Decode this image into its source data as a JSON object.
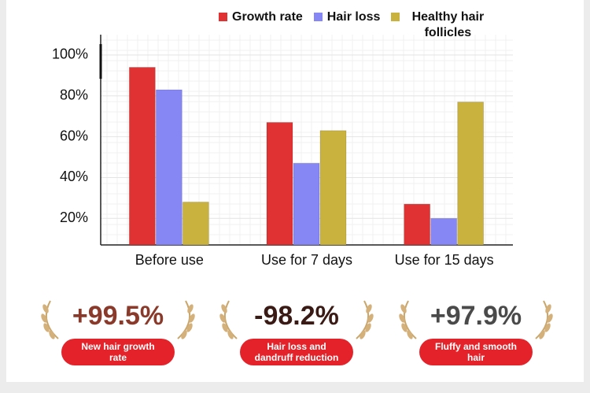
{
  "chart_data": {
    "type": "bar",
    "categories": [
      "Before use",
      "Use for 7 days",
      "Use for 15 days"
    ],
    "series": [
      {
        "name": "Growth rate",
        "color": "#e03232",
        "values": [
          94,
          67,
          27
        ]
      },
      {
        "name": "Hair loss",
        "color": "#8686f4",
        "values": [
          83,
          47,
          20
        ]
      },
      {
        "name": "Healthy hair follicles",
        "color": "#c9b23e",
        "values": [
          28,
          63,
          77
        ]
      }
    ],
    "ylim": [
      7,
      110
    ],
    "yticks": [
      {
        "value": 20,
        "label": "20%"
      },
      {
        "value": 40,
        "label": "40%"
      },
      {
        "value": 60,
        "label": "60%"
      },
      {
        "value": 80,
        "label": "80%"
      },
      {
        "value": 100,
        "label": "100%"
      }
    ],
    "grid": true
  },
  "badges": [
    {
      "value": "+99.5%",
      "label": "New hair growth rate",
      "color": "#8a3a2a"
    },
    {
      "value": "-98.2%",
      "label": "Hair loss and dandruff reduction",
      "color": "#3a1a14"
    },
    {
      "value": "+97.9%",
      "label": "Fluffy and smooth hair",
      "color": "#4a4a4a"
    }
  ]
}
